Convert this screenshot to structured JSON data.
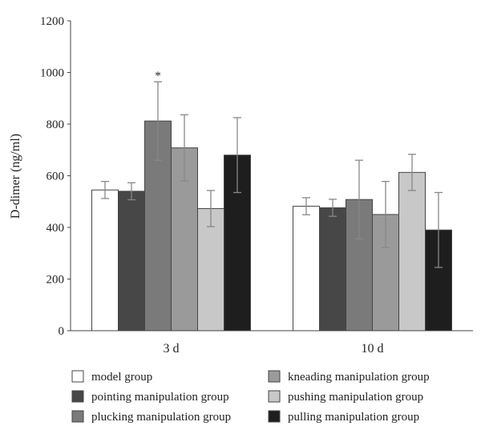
{
  "chart_data": {
    "type": "bar",
    "ylabel": "D-dimer (ng/ml)",
    "xlabel": "",
    "ylim": [
      0,
      1200
    ],
    "yticks": [
      0,
      200,
      400,
      600,
      800,
      1000,
      1200
    ],
    "categories": [
      "3 d",
      "10 d"
    ],
    "grid": false,
    "legend_position": "bottom",
    "series": [
      {
        "name": "model group",
        "color": "#ffffff",
        "values": [
          545,
          482
        ],
        "errors": [
          33,
          33
        ]
      },
      {
        "name": "pointing manipulation group",
        "color": "#474747",
        "values": [
          540,
          476
        ],
        "errors": [
          33,
          33
        ]
      },
      {
        "name": "plucking manipulation group",
        "color": "#7a7a7a",
        "values": [
          812,
          508
        ],
        "errors": [
          152,
          152
        ]
      },
      {
        "name": "kneading manipulation group",
        "color": "#9a9a9a",
        "values": [
          708,
          450
        ],
        "errors": [
          128,
          128
        ]
      },
      {
        "name": "pushing manipulation group",
        "color": "#c8c8c8",
        "values": [
          473,
          613
        ],
        "errors": [
          70,
          70
        ]
      },
      {
        "name": "pulling manipulation group",
        "color": "#1e1e1e",
        "values": [
          680,
          390
        ],
        "errors": [
          145,
          145
        ]
      }
    ],
    "annotations": [
      {
        "series": 2,
        "category": 0,
        "text": "*"
      }
    ]
  }
}
